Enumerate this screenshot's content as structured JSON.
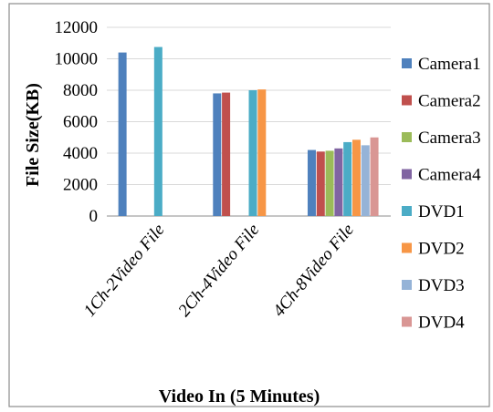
{
  "chart_data": {
    "type": "bar",
    "xlabel": "Video In (5 Minutes)",
    "ylabel": "File Size(KB)",
    "ylim": [
      0,
      12000
    ],
    "yticks": [
      0,
      2000,
      4000,
      6000,
      8000,
      10000,
      12000
    ],
    "grid": true,
    "legend_position": "right",
    "categories": [
      "1Ch-2Video File",
      "2Ch-4Video File",
      "4Ch-8Video File"
    ],
    "series": [
      {
        "name": "Camera1",
        "color": "#4F81BD",
        "values": [
          10400,
          7800,
          4200
        ]
      },
      {
        "name": "Camera2",
        "color": "#C0504D",
        "values": [
          null,
          7850,
          4100
        ]
      },
      {
        "name": "Camera3",
        "color": "#9BBB59",
        "values": [
          null,
          null,
          4150
        ]
      },
      {
        "name": "Camera4",
        "color": "#8064A2",
        "values": [
          null,
          null,
          4300
        ]
      },
      {
        "name": "DVD1",
        "color": "#4BACC6",
        "values": [
          10750,
          8000,
          4700
        ]
      },
      {
        "name": "DVD2",
        "color": "#F79646",
        "values": [
          null,
          8050,
          4850
        ]
      },
      {
        "name": "DVD3",
        "color": "#95B3D7",
        "values": [
          null,
          null,
          4500
        ]
      },
      {
        "name": "DVD4",
        "color": "#D99694",
        "values": [
          null,
          null,
          5000
        ]
      }
    ]
  }
}
